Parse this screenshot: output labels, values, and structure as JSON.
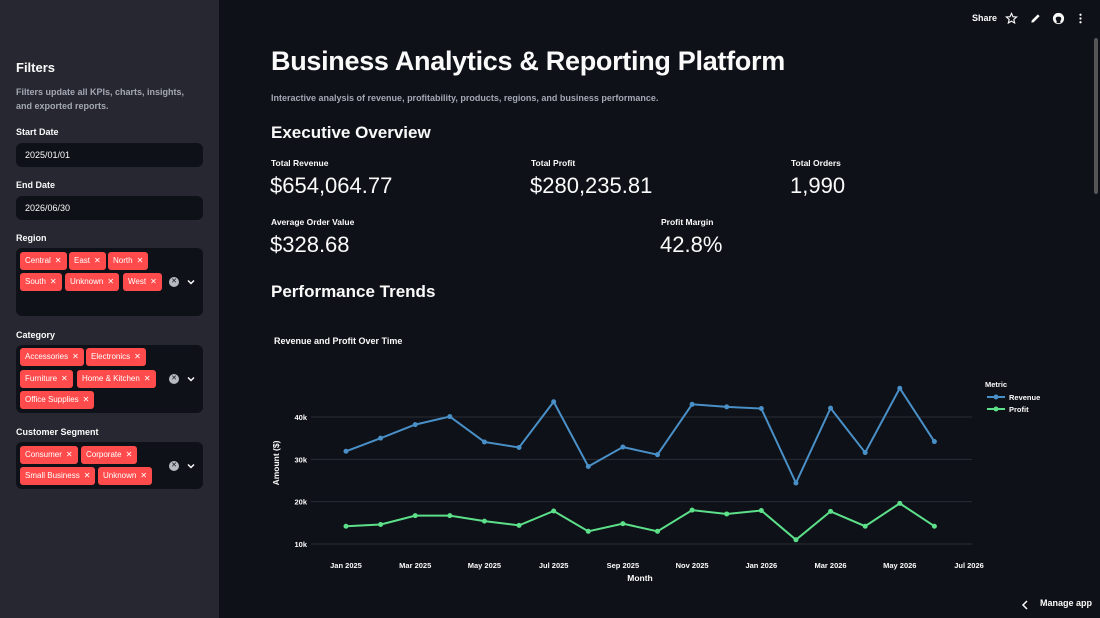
{
  "sidebar": {
    "title": "Filters",
    "description": "Filters update all KPIs, charts, insights, and exported reports.",
    "start_date": {
      "label": "Start Date",
      "value": "2025/01/01"
    },
    "end_date": {
      "label": "End Date",
      "value": "2026/06/30"
    },
    "region": {
      "label": "Region",
      "tags": [
        "Central",
        "East",
        "North",
        "South",
        "Unknown",
        "West"
      ]
    },
    "category": {
      "label": "Category",
      "tags": [
        "Accessories",
        "Electronics",
        "Furniture",
        "Home & Kitchen",
        "Office Supplies"
      ]
    },
    "segment": {
      "label": "Customer Segment",
      "tags": [
        "Consumer",
        "Corporate",
        "Small Business",
        "Unknown"
      ]
    },
    "tag_color": "#ff4b4b"
  },
  "toolbar": {
    "share_label": "Share"
  },
  "main": {
    "title": "Business Analytics & Reporting Platform",
    "subtitle": "Interactive analysis of revenue, profitability, products, regions, and business performance.",
    "overview_heading": "Executive Overview",
    "kpis": [
      {
        "label": "Total Revenue",
        "value": "$654,064.77"
      },
      {
        "label": "Total Profit",
        "value": "$280,235.81"
      },
      {
        "label": "Total Orders",
        "value": "1,990"
      },
      {
        "label": "Average Order Value",
        "value": "$328.68"
      },
      {
        "label": "Profit Margin",
        "value": "42.8%"
      }
    ],
    "trends_heading": "Performance Trends"
  },
  "chart_data": {
    "type": "line",
    "title": "Revenue and Profit Over Time",
    "xlabel": "Month",
    "ylabel": "Amount ($)",
    "legend_title": "Metric",
    "legend_position": "top-right",
    "x": [
      "2025-01",
      "2025-02",
      "2025-03",
      "2025-04",
      "2025-05",
      "2025-06",
      "2025-07",
      "2025-08",
      "2025-09",
      "2025-10",
      "2025-11",
      "2025-12",
      "2026-01",
      "2026-02",
      "2026-03",
      "2026-04",
      "2026-05",
      "2026-06"
    ],
    "x_ticks": [
      "Jan 2025",
      "Mar 2025",
      "May 2025",
      "Jul 2025",
      "Sep 2025",
      "Nov 2025",
      "Jan 2026",
      "Mar 2026",
      "May 2026",
      "Jul 2026"
    ],
    "y_ticks": [
      "10k",
      "20k",
      "30k",
      "40k"
    ],
    "ylim": [
      9000,
      44000
    ],
    "grid": true,
    "series": [
      {
        "name": "Revenue",
        "color": "#4a90c8",
        "values": [
          31900,
          35000,
          38200,
          40100,
          34100,
          32800,
          43600,
          28300,
          32900,
          31100,
          43000,
          42400,
          42000,
          24400,
          42100,
          31600,
          46800,
          34200
        ]
      },
      {
        "name": "Profit",
        "color": "#5de08a",
        "values": [
          14200,
          14600,
          16700,
          16700,
          15400,
          14400,
          17800,
          13000,
          14800,
          13000,
          18000,
          17100,
          17900,
          11000,
          17700,
          14200,
          19600,
          14200
        ]
      }
    ]
  },
  "footer": {
    "manage_label": "Manage app"
  }
}
